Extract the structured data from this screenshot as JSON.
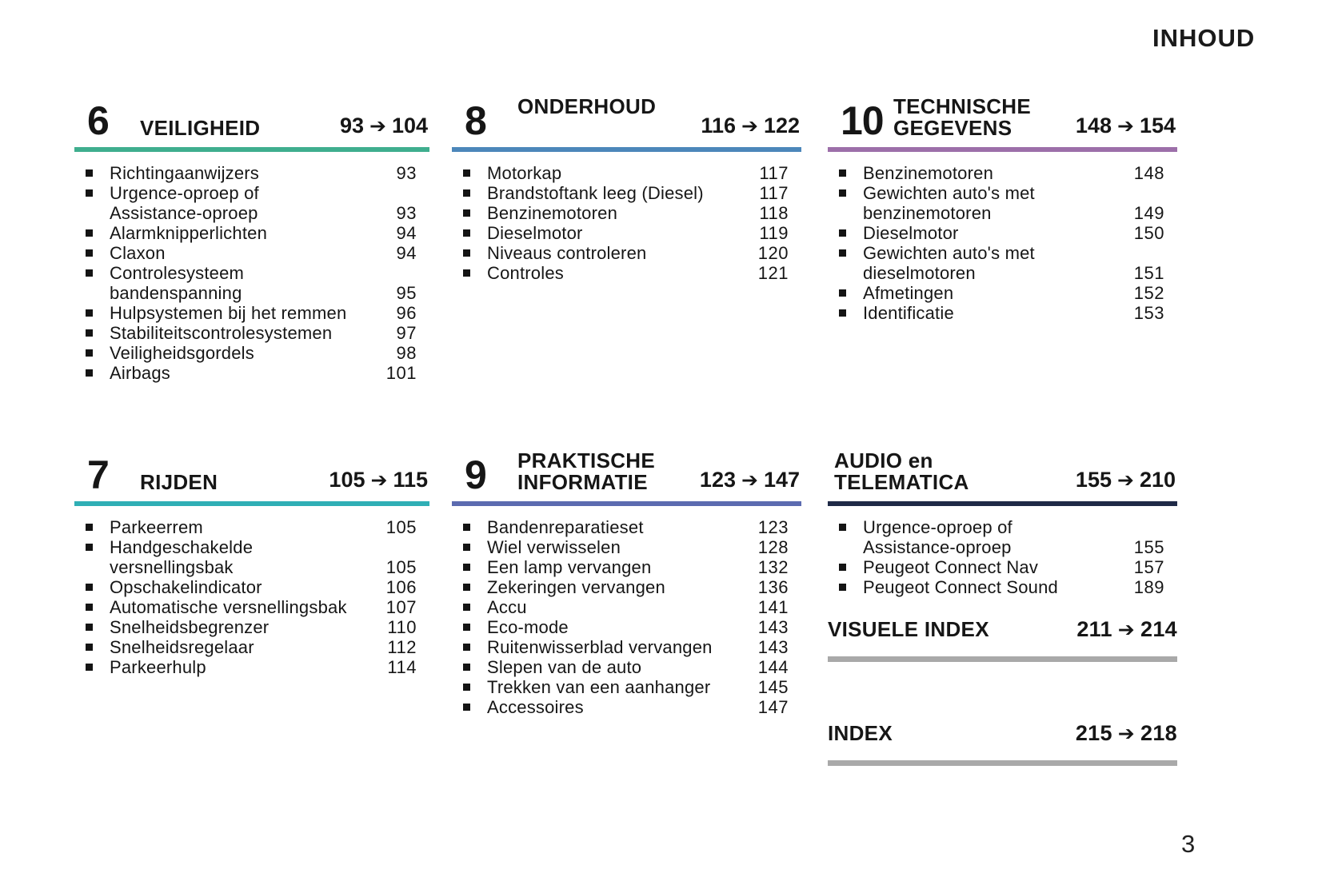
{
  "page": {
    "header": "INHOUD",
    "folio": "3"
  },
  "icons": {
    "arrow": "➔",
    "bullet": "■"
  },
  "sections": [
    {
      "id": "veiligheid",
      "number": "6",
      "title_lines": [
        "VEILIGHEID"
      ],
      "range_from": "93",
      "range_to": "104",
      "rule_color": "#3fae8e",
      "items": [
        {
          "lines": [
            "Richtingaanwijzers"
          ],
          "page": "93"
        },
        {
          "lines": [
            "Urgence-oproep of",
            "Assistance-oproep"
          ],
          "page": "93"
        },
        {
          "lines": [
            "Alarmknipperlichten"
          ],
          "page": "94"
        },
        {
          "lines": [
            "Claxon"
          ],
          "page": "94"
        },
        {
          "lines": [
            "Controlesysteem",
            "bandenspanning"
          ],
          "page": "95"
        },
        {
          "lines": [
            "Hulpsystemen bij het remmen"
          ],
          "page": "96"
        },
        {
          "lines": [
            "Stabiliteitscontrolesystemen"
          ],
          "page": "97"
        },
        {
          "lines": [
            "Veiligheidsgordels"
          ],
          "page": "98"
        },
        {
          "lines": [
            "Airbags"
          ],
          "page": "101"
        }
      ]
    },
    {
      "id": "rijden",
      "number": "7",
      "title_lines": [
        "RIJDEN"
      ],
      "range_from": "105",
      "range_to": "115",
      "rule_color": "#2fafb5",
      "items": [
        {
          "lines": [
            "Parkeerrem"
          ],
          "page": "105"
        },
        {
          "lines": [
            "Handgeschakelde",
            "versnellingsbak"
          ],
          "page": "105"
        },
        {
          "lines": [
            "Opschakelindicator"
          ],
          "page": "106"
        },
        {
          "lines": [
            "Automatische versnellingsbak"
          ],
          "page": "107"
        },
        {
          "lines": [
            "Snelheidsbegrenzer"
          ],
          "page": "110"
        },
        {
          "lines": [
            "Snelheidsregelaar"
          ],
          "page": "112"
        },
        {
          "lines": [
            "Parkeerhulp"
          ],
          "page": "114"
        }
      ]
    },
    {
      "id": "onderhoud",
      "number": "8",
      "title_lines": [
        "ONDERHOUD"
      ],
      "range_from": "116",
      "range_to": "122",
      "rule_color": "#4c87ba",
      "items": [
        {
          "lines": [
            "Motorkap"
          ],
          "page": "117"
        },
        {
          "lines": [
            "Brandstoftank leeg (Diesel)"
          ],
          "page": "117"
        },
        {
          "lines": [
            "Benzinemotoren"
          ],
          "page": "118"
        },
        {
          "lines": [
            "Dieselmotor"
          ],
          "page": "119"
        },
        {
          "lines": [
            "Niveaus controleren"
          ],
          "page": "120"
        },
        {
          "lines": [
            "Controles"
          ],
          "page": "121"
        }
      ]
    },
    {
      "id": "praktische-informatie",
      "number": "9",
      "title_lines": [
        "PRAKTISCHE",
        "INFORMATIE"
      ],
      "range_from": "123",
      "range_to": "147",
      "rule_color": "#5c6bb0",
      "items": [
        {
          "lines": [
            "Bandenreparatieset"
          ],
          "page": "123"
        },
        {
          "lines": [
            "Wiel verwisselen"
          ],
          "page": "128"
        },
        {
          "lines": [
            "Een lamp vervangen"
          ],
          "page": "132"
        },
        {
          "lines": [
            "Zekeringen vervangen"
          ],
          "page": "136"
        },
        {
          "lines": [
            "Accu"
          ],
          "page": "141"
        },
        {
          "lines": [
            "Eco-mode"
          ],
          "page": "143"
        },
        {
          "lines": [
            "Ruitenwisserblad vervangen"
          ],
          "page": "143"
        },
        {
          "lines": [
            "Slepen van de auto"
          ],
          "page": "144"
        },
        {
          "lines": [
            "Trekken van een aanhanger"
          ],
          "page": "145"
        },
        {
          "lines": [
            "Accessoires"
          ],
          "page": "147"
        }
      ]
    },
    {
      "id": "technische-gegevens",
      "number": "10",
      "title_lines": [
        "TECHNISCHE",
        "GEGEVENS"
      ],
      "range_from": "148",
      "range_to": "154",
      "rule_color": "#9c6fa9",
      "items": [
        {
          "lines": [
            "Benzinemotoren"
          ],
          "page": "148"
        },
        {
          "lines": [
            "Gewichten auto's met",
            "benzinemotoren"
          ],
          "page": "149"
        },
        {
          "lines": [
            "Dieselmotor"
          ],
          "page": "150"
        },
        {
          "lines": [
            "Gewichten auto's met",
            "dieselmotoren"
          ],
          "page": "151"
        },
        {
          "lines": [
            "Afmetingen"
          ],
          "page": "152"
        },
        {
          "lines": [
            "Identificatie"
          ],
          "page": "153"
        }
      ]
    },
    {
      "id": "audio-en-telematica",
      "number": "",
      "title_lines": [
        "AUDIO en",
        "TELEMATICA"
      ],
      "range_from": "155",
      "range_to": "210",
      "rule_color": "#1f2a47",
      "items": [
        {
          "lines": [
            "Urgence-oproep of",
            "Assistance-oproep"
          ],
          "page": "155"
        },
        {
          "lines": [
            "Peugeot Connect Nav"
          ],
          "page": "157"
        },
        {
          "lines": [
            "Peugeot Connect Sound"
          ],
          "page": "189"
        }
      ]
    }
  ],
  "index_blocks": [
    {
      "title": "VISUELE INDEX",
      "range_from": "211",
      "range_to": "214",
      "rule_color": "#a9a9a9"
    },
    {
      "title": "INDEX",
      "range_from": "215",
      "range_to": "218",
      "rule_color": "#a9a9a9"
    }
  ]
}
